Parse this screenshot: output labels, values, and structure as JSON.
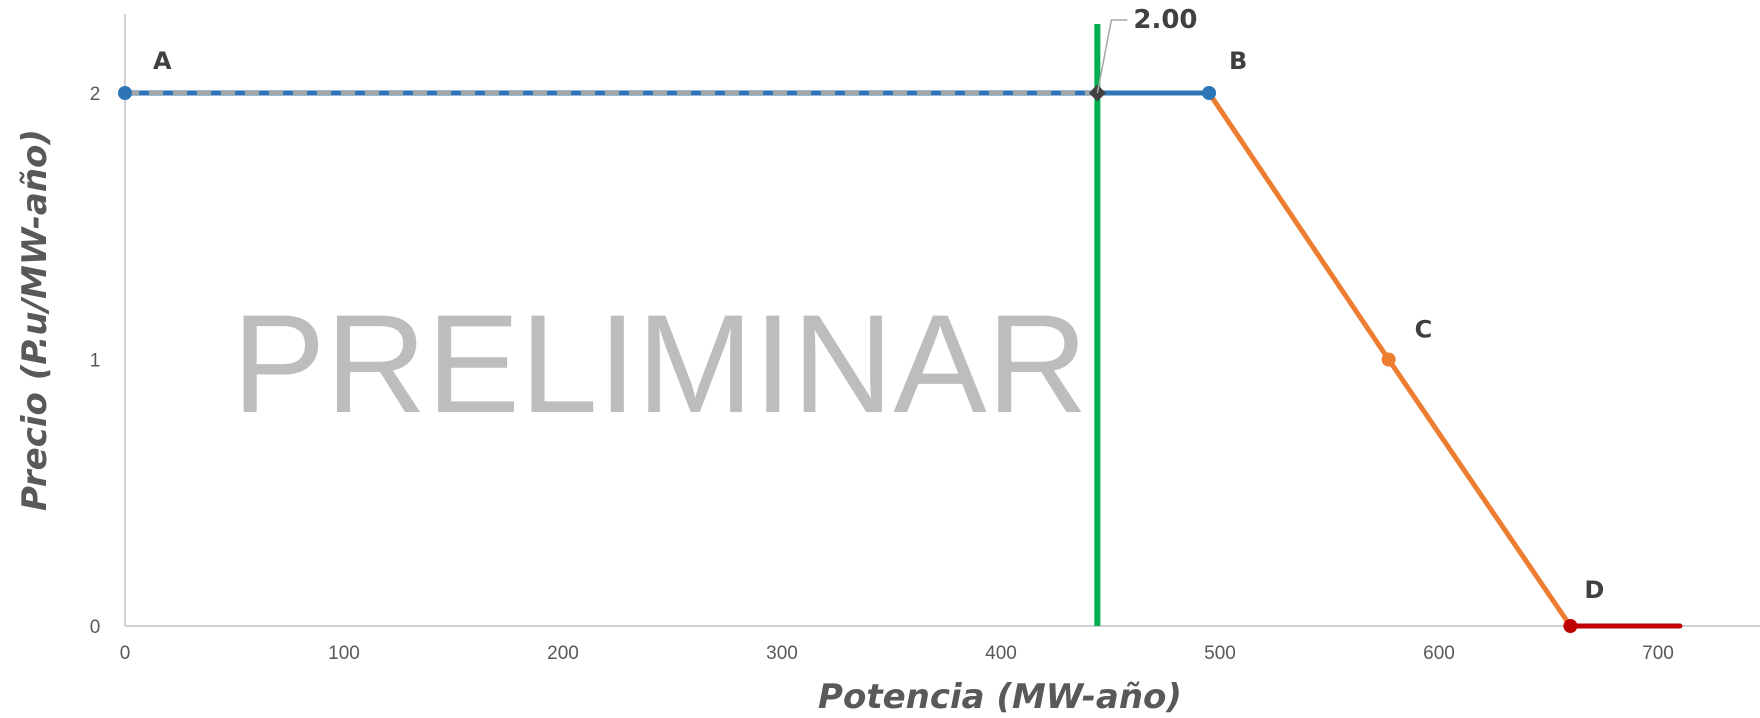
{
  "chart_data": {
    "type": "line",
    "title": "",
    "xlabel": "Potencia  (MW-año)",
    "ylabel": "Precio  (P.u/MW-año)",
    "xlim": [
      0,
      750
    ],
    "ylim": [
      0,
      2.3
    ],
    "x_ticks": [
      0,
      100,
      200,
      300,
      400,
      500,
      600,
      700
    ],
    "y_ticks": [
      0,
      1,
      2
    ],
    "grid": false,
    "watermark": "PRELIMINAR",
    "series": [
      {
        "color": "#2e75b6",
        "points": [
          [
            0,
            2
          ],
          [
            495,
            2
          ]
        ]
      },
      {
        "color": "#ed7d31",
        "points": [
          [
            495,
            2
          ],
          [
            577,
            1
          ],
          [
            660,
            0
          ]
        ]
      },
      {
        "color": "#c00000",
        "points": [
          [
            660,
            0
          ],
          [
            710,
            0
          ]
        ]
      },
      {
        "color": "#a6a6a6",
        "dashed": true,
        "points": [
          [
            0,
            2
          ],
          [
            444,
            2
          ]
        ]
      }
    ],
    "vertical_line": {
      "x": 444,
      "color": "#00b050"
    },
    "points": [
      {
        "label": "A",
        "x": 0,
        "y": 2,
        "color": "#2e75b6"
      },
      {
        "label": "B",
        "x": 495,
        "y": 2,
        "color": "#2e75b6"
      },
      {
        "label": "C",
        "x": 577,
        "y": 1,
        "color": "#ed7d31"
      },
      {
        "label": "D",
        "x": 660,
        "y": 0,
        "color": "#c00000"
      }
    ],
    "intersection": {
      "x": 444,
      "y": 2,
      "label": "2.00"
    }
  }
}
